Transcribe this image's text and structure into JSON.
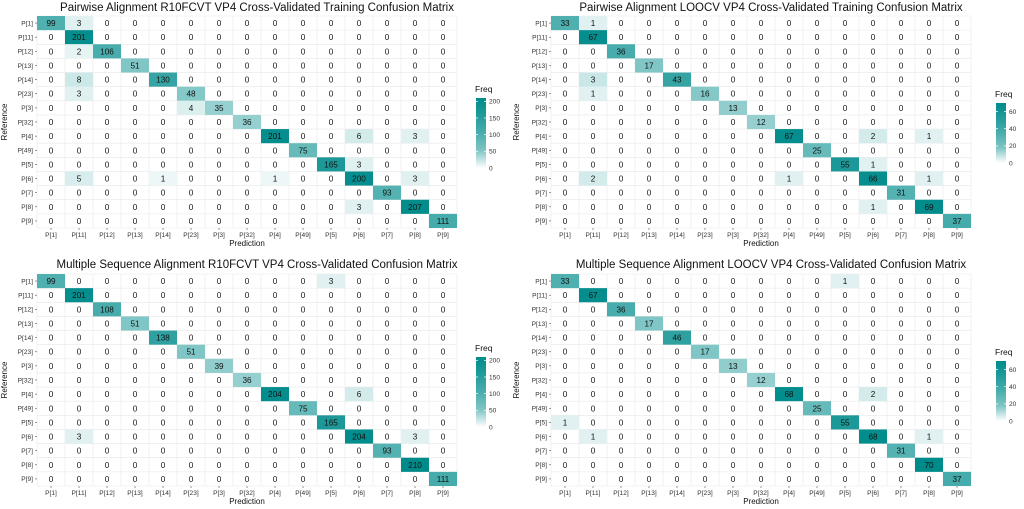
{
  "chart_data": [
    {
      "type": "heatmap",
      "title": "Pairwise Alignment R10FCVT VP4 Cross-Validated Training Confusion Matrix",
      "xlabel": "Prediction",
      "ylabel": "Reference",
      "categories": [
        "P[1]",
        "P[11]",
        "P[12]",
        "P[13]",
        "P[14]",
        "P[23]",
        "P[3]",
        "P[32]",
        "P[4]",
        "P[49]",
        "P[5]",
        "P[6]",
        "P[7]",
        "P[8]",
        "P[9]"
      ],
      "matrix": [
        [
          99,
          3,
          0,
          0,
          0,
          0,
          0,
          0,
          0,
          0,
          0,
          0,
          0,
          0,
          0
        ],
        [
          0,
          201,
          0,
          0,
          0,
          0,
          0,
          0,
          0,
          0,
          0,
          0,
          0,
          0,
          0
        ],
        [
          0,
          2,
          106,
          0,
          0,
          0,
          0,
          0,
          0,
          0,
          0,
          0,
          0,
          0,
          0
        ],
        [
          0,
          0,
          0,
          51,
          0,
          0,
          0,
          0,
          0,
          0,
          0,
          0,
          0,
          0,
          0
        ],
        [
          0,
          8,
          0,
          0,
          130,
          0,
          0,
          0,
          0,
          0,
          0,
          0,
          0,
          0,
          0
        ],
        [
          0,
          3,
          0,
          0,
          0,
          48,
          0,
          0,
          0,
          0,
          0,
          0,
          0,
          0,
          0
        ],
        [
          0,
          0,
          0,
          0,
          0,
          4,
          35,
          0,
          0,
          0,
          0,
          0,
          0,
          0,
          0
        ],
        [
          0,
          0,
          0,
          0,
          0,
          0,
          0,
          36,
          0,
          0,
          0,
          0,
          0,
          0,
          0
        ],
        [
          0,
          0,
          0,
          0,
          0,
          0,
          0,
          0,
          201,
          0,
          0,
          6,
          0,
          3,
          0
        ],
        [
          0,
          0,
          0,
          0,
          0,
          0,
          0,
          0,
          0,
          75,
          0,
          0,
          0,
          0,
          0
        ],
        [
          0,
          0,
          0,
          0,
          0,
          0,
          0,
          0,
          0,
          0,
          165,
          3,
          0,
          0,
          0
        ],
        [
          0,
          5,
          0,
          0,
          1,
          0,
          0,
          0,
          1,
          0,
          0,
          200,
          0,
          3,
          0
        ],
        [
          0,
          0,
          0,
          0,
          0,
          0,
          0,
          0,
          0,
          0,
          0,
          0,
          93,
          0,
          0
        ],
        [
          0,
          0,
          0,
          0,
          0,
          0,
          0,
          0,
          0,
          0,
          0,
          3,
          0,
          207,
          0
        ],
        [
          0,
          0,
          0,
          0,
          0,
          0,
          0,
          0,
          0,
          0,
          0,
          0,
          0,
          0,
          111
        ]
      ],
      "legend": {
        "title": "Freq",
        "max": 210,
        "ticks": [
          0,
          50,
          100,
          150,
          200
        ]
      }
    },
    {
      "type": "heatmap",
      "title": "Pairwise Alignment LOOCV VP4 Cross-Validated Training Confusion Matrix",
      "xlabel": "Prediction",
      "ylabel": "Reference",
      "categories": [
        "P[1]",
        "P[11]",
        "P[12]",
        "P[13]",
        "P[14]",
        "P[23]",
        "P[3]",
        "P[32]",
        "P[4]",
        "P[49]",
        "P[5]",
        "P[6]",
        "P[7]",
        "P[8]",
        "P[9]"
      ],
      "matrix": [
        [
          33,
          1,
          0,
          0,
          0,
          0,
          0,
          0,
          0,
          0,
          0,
          0,
          0,
          0,
          0
        ],
        [
          0,
          67,
          0,
          0,
          0,
          0,
          0,
          0,
          0,
          0,
          0,
          0,
          0,
          0,
          0
        ],
        [
          0,
          0,
          36,
          0,
          0,
          0,
          0,
          0,
          0,
          0,
          0,
          0,
          0,
          0,
          0
        ],
        [
          0,
          0,
          0,
          17,
          0,
          0,
          0,
          0,
          0,
          0,
          0,
          0,
          0,
          0,
          0
        ],
        [
          0,
          3,
          0,
          0,
          43,
          0,
          0,
          0,
          0,
          0,
          0,
          0,
          0,
          0,
          0
        ],
        [
          0,
          1,
          0,
          0,
          0,
          16,
          0,
          0,
          0,
          0,
          0,
          0,
          0,
          0,
          0
        ],
        [
          0,
          0,
          0,
          0,
          0,
          0,
          13,
          0,
          0,
          0,
          0,
          0,
          0,
          0,
          0
        ],
        [
          0,
          0,
          0,
          0,
          0,
          0,
          0,
          12,
          0,
          0,
          0,
          0,
          0,
          0,
          0
        ],
        [
          0,
          0,
          0,
          0,
          0,
          0,
          0,
          0,
          67,
          0,
          0,
          2,
          0,
          1,
          0
        ],
        [
          0,
          0,
          0,
          0,
          0,
          0,
          0,
          0,
          0,
          25,
          0,
          0,
          0,
          0,
          0
        ],
        [
          0,
          0,
          0,
          0,
          0,
          0,
          0,
          0,
          0,
          0,
          55,
          1,
          0,
          0,
          0
        ],
        [
          0,
          2,
          0,
          0,
          0,
          0,
          0,
          0,
          1,
          0,
          0,
          66,
          0,
          1,
          0
        ],
        [
          0,
          0,
          0,
          0,
          0,
          0,
          0,
          0,
          0,
          0,
          0,
          0,
          31,
          0,
          0
        ],
        [
          0,
          0,
          0,
          0,
          0,
          0,
          0,
          0,
          0,
          0,
          0,
          1,
          0,
          69,
          0
        ],
        [
          0,
          0,
          0,
          0,
          0,
          0,
          0,
          0,
          0,
          0,
          0,
          0,
          0,
          0,
          37
        ]
      ],
      "legend": {
        "title": "Freq",
        "max": 70,
        "ticks": [
          0,
          20,
          40,
          60
        ]
      }
    },
    {
      "type": "heatmap",
      "title": "Multiple Sequence Alignment R10FCVT VP4 Cross-Validated Confusion Matrix",
      "xlabel": "Prediction",
      "ylabel": "Reference",
      "categories": [
        "P[1]",
        "P[11]",
        "P[12]",
        "P[13]",
        "P[14]",
        "P[23]",
        "P[3]",
        "P[32]",
        "P[4]",
        "P[49]",
        "P[5]",
        "P[6]",
        "P[7]",
        "P[8]",
        "P[9]"
      ],
      "matrix": [
        [
          99,
          0,
          0,
          0,
          0,
          0,
          0,
          0,
          0,
          0,
          3,
          0,
          0,
          0,
          0
        ],
        [
          0,
          201,
          0,
          0,
          0,
          0,
          0,
          0,
          0,
          0,
          0,
          0,
          0,
          0,
          0
        ],
        [
          0,
          0,
          108,
          0,
          0,
          0,
          0,
          0,
          0,
          0,
          0,
          0,
          0,
          0,
          0
        ],
        [
          0,
          0,
          0,
          51,
          0,
          0,
          0,
          0,
          0,
          0,
          0,
          0,
          0,
          0,
          0
        ],
        [
          0,
          0,
          0,
          0,
          138,
          0,
          0,
          0,
          0,
          0,
          0,
          0,
          0,
          0,
          0
        ],
        [
          0,
          0,
          0,
          0,
          0,
          51,
          0,
          0,
          0,
          0,
          0,
          0,
          0,
          0,
          0
        ],
        [
          0,
          0,
          0,
          0,
          0,
          0,
          39,
          0,
          0,
          0,
          0,
          0,
          0,
          0,
          0
        ],
        [
          0,
          0,
          0,
          0,
          0,
          0,
          0,
          36,
          0,
          0,
          0,
          0,
          0,
          0,
          0
        ],
        [
          0,
          0,
          0,
          0,
          0,
          0,
          0,
          0,
          204,
          0,
          0,
          6,
          0,
          0,
          0
        ],
        [
          0,
          0,
          0,
          0,
          0,
          0,
          0,
          0,
          0,
          75,
          0,
          0,
          0,
          0,
          0
        ],
        [
          0,
          0,
          0,
          0,
          0,
          0,
          0,
          0,
          0,
          0,
          165,
          0,
          0,
          0,
          0
        ],
        [
          0,
          3,
          0,
          0,
          0,
          0,
          0,
          0,
          0,
          0,
          0,
          204,
          0,
          3,
          0
        ],
        [
          0,
          0,
          0,
          0,
          0,
          0,
          0,
          0,
          0,
          0,
          0,
          0,
          93,
          0,
          0
        ],
        [
          0,
          0,
          0,
          0,
          0,
          0,
          0,
          0,
          0,
          0,
          0,
          0,
          0,
          210,
          0
        ],
        [
          0,
          0,
          0,
          0,
          0,
          0,
          0,
          0,
          0,
          0,
          0,
          0,
          0,
          0,
          111
        ]
      ],
      "legend": {
        "title": "Freq",
        "max": 210,
        "ticks": [
          0,
          50,
          100,
          150,
          200
        ]
      }
    },
    {
      "type": "heatmap",
      "title": "Multiple Sequence Alignment LOOCV VP4 Cross-Validated Confusion Matrix",
      "xlabel": "Prediction",
      "ylabel": "Reference",
      "categories": [
        "P[1]",
        "P[11]",
        "P[12]",
        "P[13]",
        "P[14]",
        "P[23]",
        "P[3]",
        "P[32]",
        "P[4]",
        "P[49]",
        "P[5]",
        "P[6]",
        "P[7]",
        "P[8]",
        "P[9]"
      ],
      "matrix": [
        [
          33,
          0,
          0,
          0,
          0,
          0,
          0,
          0,
          0,
          0,
          1,
          0,
          0,
          0,
          0
        ],
        [
          0,
          67,
          0,
          0,
          0,
          0,
          0,
          0,
          0,
          0,
          0,
          0,
          0,
          0,
          0
        ],
        [
          0,
          0,
          36,
          0,
          0,
          0,
          0,
          0,
          0,
          0,
          0,
          0,
          0,
          0,
          0
        ],
        [
          0,
          0,
          0,
          17,
          0,
          0,
          0,
          0,
          0,
          0,
          0,
          0,
          0,
          0,
          0
        ],
        [
          0,
          0,
          0,
          0,
          46,
          0,
          0,
          0,
          0,
          0,
          0,
          0,
          0,
          0,
          0
        ],
        [
          0,
          0,
          0,
          0,
          0,
          17,
          0,
          0,
          0,
          0,
          0,
          0,
          0,
          0,
          0
        ],
        [
          0,
          0,
          0,
          0,
          0,
          0,
          13,
          0,
          0,
          0,
          0,
          0,
          0,
          0,
          0
        ],
        [
          0,
          0,
          0,
          0,
          0,
          0,
          0,
          12,
          0,
          0,
          0,
          0,
          0,
          0,
          0
        ],
        [
          0,
          0,
          0,
          0,
          0,
          0,
          0,
          0,
          68,
          0,
          0,
          2,
          0,
          0,
          0
        ],
        [
          0,
          0,
          0,
          0,
          0,
          0,
          0,
          0,
          0,
          25,
          0,
          0,
          0,
          0,
          0
        ],
        [
          1,
          0,
          0,
          0,
          0,
          0,
          0,
          0,
          0,
          0,
          55,
          0,
          0,
          0,
          0
        ],
        [
          0,
          1,
          0,
          0,
          0,
          0,
          0,
          0,
          0,
          0,
          0,
          68,
          0,
          1,
          0
        ],
        [
          0,
          0,
          0,
          0,
          0,
          0,
          0,
          0,
          0,
          0,
          0,
          0,
          31,
          0,
          0
        ],
        [
          0,
          0,
          0,
          0,
          0,
          0,
          0,
          0,
          0,
          0,
          0,
          0,
          0,
          70,
          0
        ],
        [
          0,
          0,
          0,
          0,
          0,
          0,
          0,
          0,
          0,
          0,
          0,
          0,
          0,
          0,
          37
        ]
      ],
      "legend": {
        "title": "Freq",
        "max": 70,
        "ticks": [
          0,
          20,
          40,
          60
        ]
      }
    }
  ],
  "colors": {
    "low": "#ffffff",
    "high": "#008b8b",
    "grid": "#e8e8e8"
  }
}
